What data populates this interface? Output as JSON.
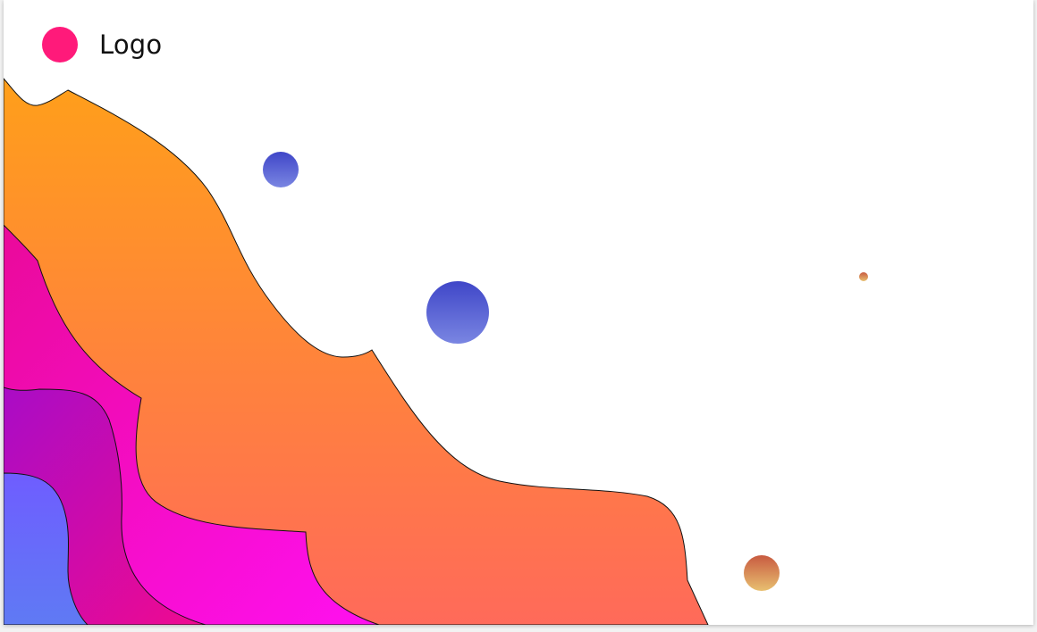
{
  "header": {
    "logo_text": "Logo",
    "logo_color": "#ff1a7a"
  },
  "colors": {
    "orange_top": "#ff9f1a",
    "orange_bottom": "#ff6a5a",
    "pink": "#ff10e8",
    "magenta": "#b40cc0",
    "violet": "#6a5cff",
    "blue_dot_top": "#3f46c8",
    "blue_dot_bottom": "#7a86e2",
    "copper_dot_top": "#c85a40",
    "copper_dot_bottom": "#e8c070"
  },
  "icons": {
    "logo": "circle-logo-icon"
  }
}
